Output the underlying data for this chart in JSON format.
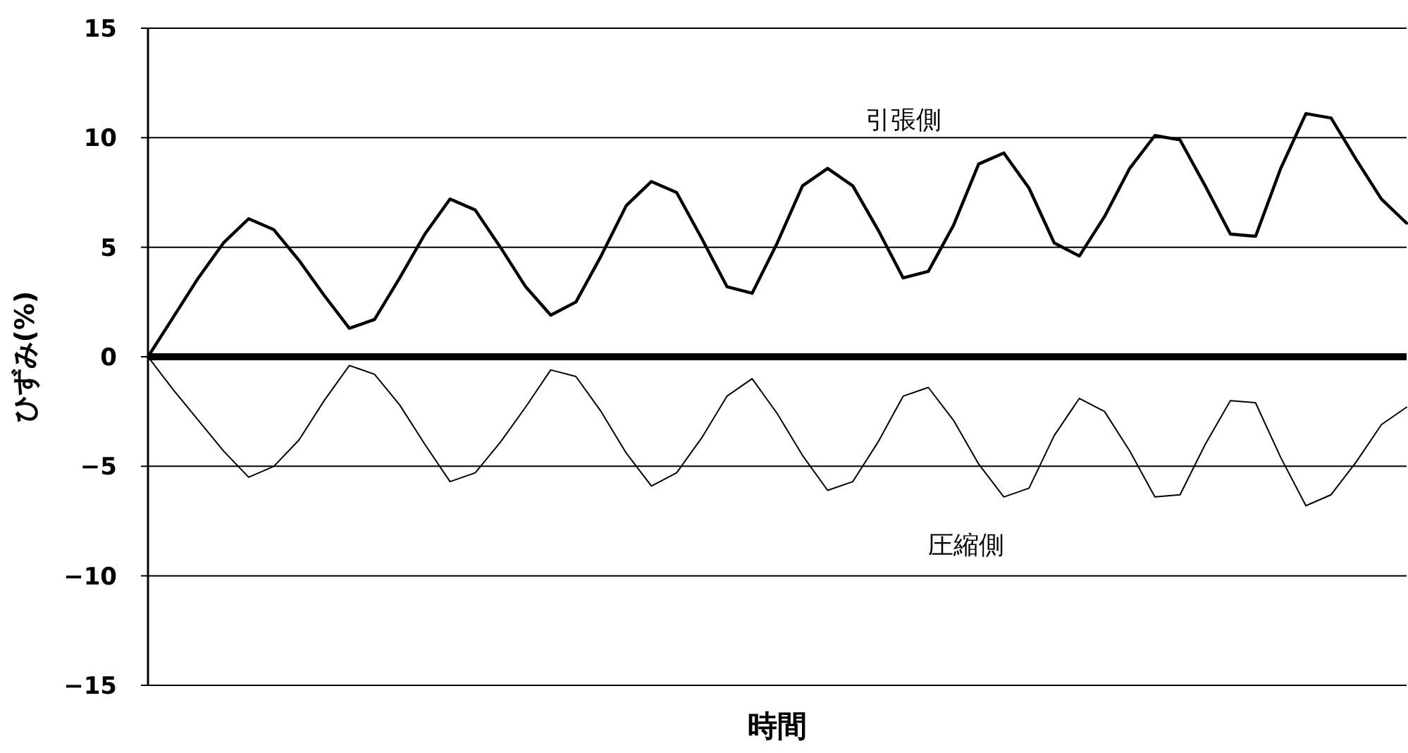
{
  "chart_data": {
    "type": "line",
    "xlabel": "時間",
    "ylabel": "ひずみ(%)",
    "categories": [
      null,
      null,
      null,
      null,
      null,
      null,
      null,
      null,
      null,
      null,
      null,
      null,
      null,
      null,
      null,
      null,
      null,
      null,
      null,
      null,
      null,
      null,
      null,
      null,
      null,
      null,
      null,
      null,
      null,
      null,
      null,
      null,
      null,
      null,
      null,
      null,
      null,
      null,
      null,
      null,
      null,
      null,
      null,
      null,
      null,
      null,
      null,
      null,
      null,
      null,
      null
    ],
    "series": [
      {
        "name": "引張側",
        "color": "#000000",
        "values": [
          0,
          1.8,
          3.6,
          5.2,
          6.3,
          5.8,
          4.4,
          2.8,
          1.3,
          1.7,
          3.6,
          5.6,
          7.2,
          6.7,
          5.0,
          3.2,
          1.9,
          2.5,
          4.6,
          6.9,
          8.0,
          7.5,
          5.4,
          3.2,
          2.9,
          5.2,
          7.8,
          8.6,
          7.8,
          5.8,
          3.6,
          3.9,
          6.0,
          8.8,
          9.3,
          7.7,
          5.2,
          4.6,
          6.4,
          8.6,
          10.1,
          9.9,
          7.8,
          5.6,
          5.5,
          8.6,
          11.1,
          10.9,
          9.0,
          7.2,
          6.1
        ]
      },
      {
        "name": "圧縮側",
        "color": "#000000",
        "values": [
          0,
          -1.5,
          -2.9,
          -4.3,
          -5.5,
          -5.0,
          -3.8,
          -2.0,
          -0.4,
          -0.8,
          -2.2,
          -4.0,
          -5.7,
          -5.3,
          -3.9,
          -2.3,
          -0.6,
          -0.9,
          -2.5,
          -4.4,
          -5.9,
          -5.3,
          -3.7,
          -1.8,
          -1.0,
          -2.6,
          -4.5,
          -6.1,
          -5.7,
          -3.9,
          -1.8,
          -1.4,
          -2.9,
          -4.9,
          -6.4,
          -6.0,
          -3.6,
          -1.9,
          -2.5,
          -4.3,
          -6.4,
          -6.3,
          -4.0,
          -2.0,
          -2.1,
          -4.6,
          -6.8,
          -6.3,
          -4.8,
          -3.1,
          -2.3
        ]
      }
    ],
    "ylim": [
      -15,
      15
    ],
    "yticks": [
      -15,
      -10,
      -5,
      0,
      5,
      10,
      15
    ],
    "grid": "y",
    "tick_labels": "y",
    "ref_lines": [
      {
        "axis": "y",
        "value": 0,
        "color": "#000000"
      }
    ]
  }
}
